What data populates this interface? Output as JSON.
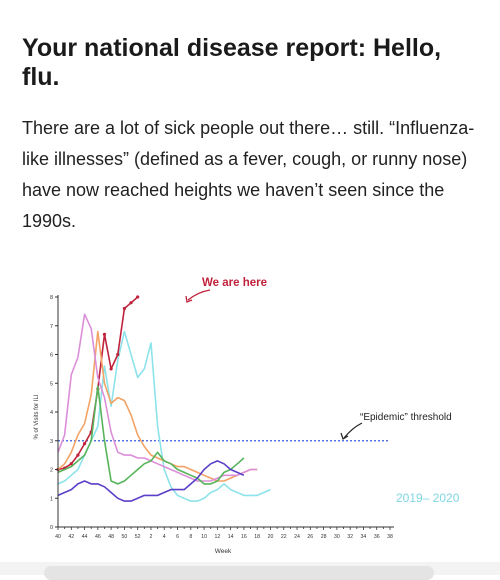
{
  "article": {
    "title": "Your national disease report: Hello, flu.",
    "body": "There are a lot of sick people out there… still. “Influenza-like illnesses” (defined as a fever, cough, or runny nose) have now reached heights we haven’t seen since the 1990s."
  },
  "chart_data": {
    "type": "line",
    "xlabel": "Week",
    "ylabel": "% of Visits for ILI",
    "ylim": [
      0,
      8
    ],
    "y_ticks": [
      "0",
      "1",
      "2",
      "3",
      "4",
      "5",
      "6",
      "7",
      "8"
    ],
    "x_ticks": [
      "40",
      "42",
      "44",
      "46",
      "48",
      "50",
      "52",
      "2",
      "4",
      "6",
      "8",
      "10",
      "12",
      "14",
      "16",
      "18",
      "20",
      "22",
      "24",
      "26",
      "28",
      "30",
      "32",
      "34",
      "36",
      "38"
    ],
    "threshold": {
      "value": 3.0,
      "label": "“Epidemic” threshold"
    },
    "annotations": {
      "current": "We are here",
      "season_label": "2019– 2020"
    },
    "colors": {
      "accent": "#c0223c",
      "threshold": "#3b5bd6"
    },
    "series": [
      {
        "name": "2019– 2020",
        "color": "#8de3ea",
        "values": [
          1.5,
          1.6,
          1.8,
          2.0,
          2.5,
          3.0,
          3.5,
          5.6,
          4.2,
          5.8,
          6.8,
          6.0,
          5.2,
          5.5,
          6.4,
          3.5,
          2.0,
          1.4,
          1.1,
          1.0,
          0.9,
          0.9,
          1.0,
          1.2,
          1.3,
          1.5,
          1.3,
          1.2,
          1.1,
          1.1,
          1.1,
          1.2,
          1.3
        ]
      },
      {
        "name": "",
        "color": "#c0223c",
        "values": [
          2.0,
          2.05,
          2.2,
          2.5,
          2.9,
          3.3,
          4.8,
          6.7,
          5.5,
          6.0,
          7.6,
          7.8,
          8.0
        ]
      },
      {
        "name": "",
        "color": "#f2a366",
        "values": [
          2.0,
          2.2,
          2.6,
          3.2,
          3.6,
          4.6,
          6.8,
          5.0,
          4.3,
          4.5,
          4.4,
          3.9,
          3.2,
          2.8,
          2.5,
          2.4,
          2.3,
          2.2,
          2.1,
          2.1,
          2.0,
          1.9,
          1.8,
          1.7,
          1.6,
          1.6,
          1.7,
          1.8,
          1.9,
          2.0,
          2.0
        ]
      },
      {
        "name": "",
        "color": "#dc8fd8",
        "values": [
          2.6,
          3.2,
          5.3,
          5.9,
          7.4,
          6.9,
          5.2,
          4.5,
          3.3,
          2.6,
          2.5,
          2.5,
          2.4,
          2.4,
          2.3,
          2.2,
          2.1,
          2.0,
          1.9,
          1.8,
          1.7,
          1.6,
          1.6,
          1.6,
          1.7,
          1.8,
          1.8,
          1.8,
          1.9,
          2.0,
          2.0
        ]
      },
      {
        "name": "",
        "color": "#56b45a",
        "values": [
          1.9,
          2.0,
          2.1,
          2.3,
          2.5,
          3.0,
          4.9,
          3.0,
          1.6,
          1.5,
          1.6,
          1.8,
          2.0,
          2.2,
          2.3,
          2.6,
          2.3,
          2.2,
          2.0,
          1.9,
          1.8,
          1.7,
          1.5,
          1.5,
          1.6,
          1.9,
          2.0,
          2.2,
          2.4
        ]
      },
      {
        "name": "",
        "color": "#5b3fc8",
        "values": [
          1.1,
          1.2,
          1.3,
          1.5,
          1.6,
          1.5,
          1.5,
          1.4,
          1.2,
          1.0,
          0.9,
          0.9,
          1.0,
          1.1,
          1.1,
          1.1,
          1.2,
          1.3,
          1.3,
          1.3,
          1.5,
          1.7,
          2.0,
          2.2,
          2.3,
          2.2,
          2.0,
          1.9,
          1.8
        ]
      }
    ]
  }
}
